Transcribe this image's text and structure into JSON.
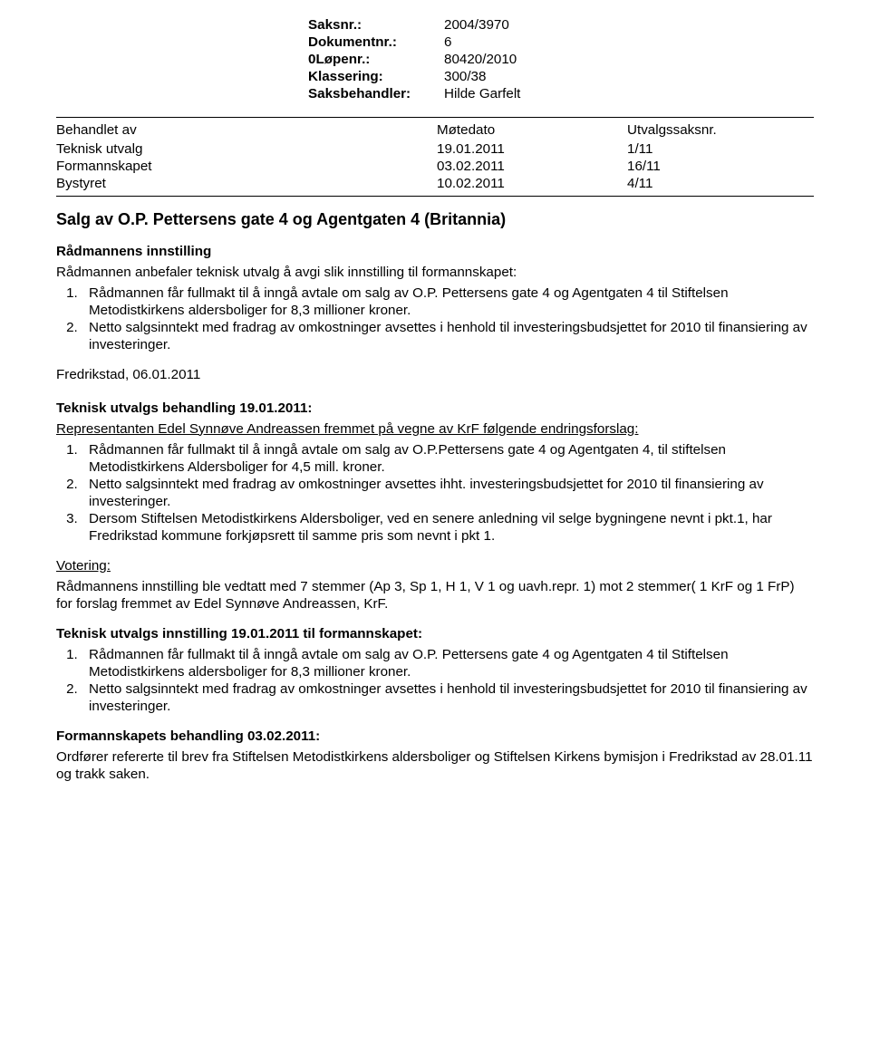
{
  "meta": {
    "rows": [
      {
        "label": "Saksnr.:",
        "value": "2004/3970"
      },
      {
        "label": "Dokumentnr.:",
        "value": "6"
      },
      {
        "label": "0Løpenr.:",
        "value": "80420/2010"
      },
      {
        "label": "Klassering:",
        "value": "300/38"
      },
      {
        "label": "Saksbehandler:",
        "value": "Hilde Garfelt"
      }
    ]
  },
  "treatment": {
    "headers": [
      "Behandlet av",
      "Møtedato",
      "Utvalgssaksnr."
    ],
    "rows": [
      [
        "Teknisk utvalg",
        "19.01.2011",
        "1/11"
      ],
      [
        "Formannskapet",
        "03.02.2011",
        "16/11"
      ],
      [
        "Bystyret",
        "10.02.2011",
        "4/11"
      ]
    ]
  },
  "title": "Salg av O.P. Pettersens gate 4 og Agentgaten 4 (Britannia)",
  "radmannens": {
    "heading": "Rådmannens innstilling",
    "intro": "Rådmannen anbefaler teknisk utvalg å avgi slik innstilling til formannskapet:",
    "items": [
      "Rådmannen får fullmakt til å inngå avtale om salg av O.P. Pettersens gate 4 og Agentgaten 4 til Stiftelsen Metodistkirkens aldersboliger for 8,3 millioner kroner.",
      "Netto salgsinntekt med fradrag av omkostninger avsettes i henhold til investeringsbudsjettet for 2010 til finansiering av investeringer."
    ],
    "date": "Fredrikstad, 06.01.2011"
  },
  "section2": {
    "heading": "Teknisk utvalgs behandling 19.01.2011:",
    "intro": "Representanten Edel Synnøve Andreassen fremmet på vegne av KrF følgende endringsforslag:",
    "items": [
      "Rådmannen får fullmakt til å inngå avtale om salg av O.P.Pettersens gate 4 og Agentgaten 4, til stiftelsen Metodistkirkens Aldersboliger for 4,5 mill. kroner.",
      "Netto salgsinntekt med fradrag av omkostninger avsettes ihht. investeringsbudsjettet for 2010 til finansiering av investeringer.",
      "Dersom Stiftelsen Metodistkirkens Aldersboliger, ved en senere anledning vil selge bygningene nevnt i pkt.1, har Fredrikstad kommune forkjøpsrett til samme pris som nevnt i pkt 1."
    ]
  },
  "votering": {
    "heading": "Votering:",
    "text": "Rådmannens innstilling ble vedtatt med 7 stemmer (Ap 3, Sp 1, H 1, V 1 og uavh.repr. 1) mot 2 stemmer( 1 KrF og 1 FrP) for forslag fremmet av Edel Synnøve Andreassen, KrF."
  },
  "section3": {
    "heading": "Teknisk utvalgs innstilling 19.01.2011 til formannskapet:",
    "items": [
      "Rådmannen får fullmakt til å inngå avtale om salg av O.P. Pettersens gate 4 og Agentgaten 4 til Stiftelsen Metodistkirkens aldersboliger for 8,3 millioner kroner.",
      "Netto salgsinntekt med fradrag av omkostninger avsettes i henhold til investeringsbudsjettet for 2010 til finansiering av investeringer."
    ]
  },
  "section4": {
    "heading": "Formannskapets behandling 03.02.2011:",
    "text": "Ordfører refererte til brev fra Stiftelsen Metodistkirkens aldersboliger og Stiftelsen Kirkens bymisjon i Fredrikstad av 28.01.11 og trakk saken."
  }
}
